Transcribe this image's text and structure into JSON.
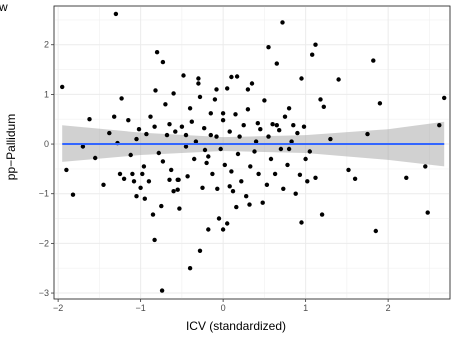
{
  "chart_data": {
    "type": "scatter",
    "corner_label": "w",
    "title": "",
    "xlabel": "ICV (standardized)",
    "ylabel": "pp−Pallidum",
    "xlim": [
      -2.05,
      2.75
    ],
    "ylim": [
      -3.12,
      2.78
    ],
    "x_ticks": [
      -2,
      -1,
      0,
      1,
      2
    ],
    "x_tick_labels": [
      "−2",
      "−1",
      "0",
      "1",
      "2"
    ],
    "y_ticks": [
      -3,
      -2,
      -1,
      0,
      1,
      2
    ],
    "y_tick_labels": [
      "−3",
      "−2",
      "−1",
      "0",
      "1",
      "2"
    ],
    "grid": true,
    "fit_line": {
      "intercept": 0.0,
      "slope": 0.0,
      "color": "#3366ff"
    },
    "confidence_band": {
      "x": [
        -1.95,
        -1.0,
        0.0,
        1.0,
        2.0,
        2.68
      ],
      "lower": [
        -0.36,
        -0.22,
        -0.14,
        -0.18,
        -0.32,
        -0.45
      ],
      "upper": [
        0.38,
        0.23,
        0.14,
        0.18,
        0.3,
        0.45
      ],
      "color": "#999999"
    },
    "point_color": "#000000",
    "points": [
      [
        -1.95,
        1.15
      ],
      [
        -1.9,
        -0.52
      ],
      [
        -1.82,
        -1.02
      ],
      [
        -1.7,
        -0.05
      ],
      [
        -1.62,
        0.5
      ],
      [
        -1.55,
        -0.28
      ],
      [
        -1.45,
        -0.82
      ],
      [
        -1.38,
        0.22
      ],
      [
        -1.32,
        0.55
      ],
      [
        -1.3,
        2.62
      ],
      [
        -1.28,
        0.02
      ],
      [
        -1.25,
        -0.6
      ],
      [
        -1.23,
        0.92
      ],
      [
        -1.2,
        -0.7
      ],
      [
        -1.15,
        0.48
      ],
      [
        -1.12,
        -0.22
      ],
      [
        -1.1,
        -0.6
      ],
      [
        -1.08,
        -0.75
      ],
      [
        -1.05,
        -1.05
      ],
      [
        -1.02,
        0.3
      ],
      [
        -1.0,
        -0.88
      ],
      [
        -0.98,
        -0.6
      ],
      [
        -0.95,
        -1.1
      ],
      [
        -0.93,
        0.2
      ],
      [
        -0.9,
        -0.75
      ],
      [
        -0.88,
        0.55
      ],
      [
        -0.85,
        -1.42
      ],
      [
        -0.83,
        0.35
      ],
      [
        -0.8,
        1.85
      ],
      [
        -0.78,
        -0.18
      ],
      [
        -0.75,
        -1.25
      ],
      [
        -0.73,
        -0.35
      ],
      [
        -0.7,
        0.8
      ],
      [
        -0.68,
        0.18
      ],
      [
        -0.65,
        0.4
      ],
      [
        -0.63,
        -0.52
      ],
      [
        -0.6,
        -0.95
      ],
      [
        -0.58,
        0.25
      ],
      [
        -0.55,
        -0.72
      ],
      [
        -0.53,
        -1.3
      ],
      [
        -0.5,
        0.35
      ],
      [
        -0.48,
        1.38
      ],
      [
        -0.45,
        -0.05
      ],
      [
        -0.43,
        -0.65
      ],
      [
        -0.4,
        0.72
      ],
      [
        -0.38,
        0.45
      ],
      [
        -0.35,
        -0.3
      ],
      [
        -0.33,
        0.05
      ],
      [
        -0.3,
        1.22
      ],
      [
        -0.28,
        0.95
      ],
      [
        -0.25,
        -0.88
      ],
      [
        -0.23,
        0.32
      ],
      [
        -0.2,
        -0.38
      ],
      [
        -0.18,
        -0.25
      ],
      [
        -0.15,
        0.62
      ],
      [
        -0.13,
        -0.6
      ],
      [
        -0.1,
        0.9
      ],
      [
        -0.08,
        0.15
      ],
      [
        -0.05,
        -1.5
      ],
      [
        -0.03,
        -0.1
      ],
      [
        0.0,
        0.48
      ],
      [
        0.02,
        -0.42
      ],
      [
        0.05,
        1.12
      ],
      [
        0.08,
        0.25
      ],
      [
        0.1,
        -0.55
      ],
      [
        0.12,
        -0.95
      ],
      [
        0.15,
        0.6
      ],
      [
        0.18,
        -0.2
      ],
      [
        0.2,
        0.15
      ],
      [
        0.22,
        -0.75
      ],
      [
        0.25,
        0.38
      ],
      [
        0.28,
        -1.05
      ],
      [
        0.3,
        0.7
      ],
      [
        0.33,
        -0.45
      ],
      [
        0.35,
        1.22
      ],
      [
        0.38,
        -0.15
      ],
      [
        0.4,
        0.05
      ],
      [
        0.43,
        -0.6
      ],
      [
        0.45,
        0.3
      ],
      [
        0.48,
        -1.18
      ],
      [
        0.5,
        0.88
      ],
      [
        0.53,
        -0.82
      ],
      [
        0.55,
        0.15
      ],
      [
        0.58,
        -0.3
      ],
      [
        0.6,
        0.4
      ],
      [
        0.63,
        -0.6
      ],
      [
        0.65,
        1.62
      ],
      [
        0.68,
        0.28
      ],
      [
        0.7,
        -0.1
      ],
      [
        0.73,
        -0.9
      ],
      [
        0.75,
        0.55
      ],
      [
        0.78,
        -0.42
      ],
      [
        0.8,
        0.72
      ],
      [
        0.83,
        0.05
      ],
      [
        0.85,
        0.38
      ],
      [
        0.88,
        -1.0
      ],
      [
        0.9,
        0.22
      ],
      [
        0.93,
        -0.62
      ],
      [
        0.95,
        1.32
      ],
      [
        0.98,
        0.35
      ],
      [
        1.0,
        -0.3
      ],
      [
        1.02,
        -0.75
      ],
      [
        -0.73,
        1.65
      ],
      [
        -0.82,
        1.08
      ],
      [
        -0.6,
        1.02
      ],
      [
        -0.3,
        1.32
      ],
      [
        0.17,
        1.36
      ],
      [
        0.55,
        1.95
      ],
      [
        0.1,
        1.35
      ],
      [
        -0.08,
        1.1
      ],
      [
        0.3,
        1.1
      ],
      [
        0.0,
        0.62
      ],
      [
        -0.65,
        -0.72
      ],
      [
        -0.55,
        -0.92
      ],
      [
        0.16,
        -1.27
      ],
      [
        0.08,
        -0.85
      ],
      [
        -0.4,
        -2.5
      ],
      [
        -0.54,
        -0.72
      ],
      [
        -0.74,
        -2.95
      ],
      [
        -0.83,
        -1.93
      ],
      [
        -0.28,
        -2.15
      ],
      [
        0.05,
        -1.6
      ],
      [
        0.0,
        -1.72
      ],
      [
        0.32,
        -1.22
      ],
      [
        -0.07,
        -0.9
      ],
      [
        -0.22,
        -0.12
      ],
      [
        0.72,
        2.45
      ],
      [
        0.65,
        0.38
      ],
      [
        1.05,
        -0.15
      ],
      [
        1.08,
        1.8
      ],
      [
        1.12,
        2.0
      ],
      [
        1.18,
        0.9
      ],
      [
        1.22,
        0.75
      ],
      [
        1.3,
        0.1
      ],
      [
        1.4,
        1.3
      ],
      [
        1.52,
        -0.52
      ],
      [
        1.6,
        -0.7
      ],
      [
        1.75,
        0.2
      ],
      [
        1.82,
        1.68
      ],
      [
        1.85,
        -1.75
      ],
      [
        1.9,
        0.82
      ],
      [
        2.22,
        -0.68
      ],
      [
        2.45,
        -0.45
      ],
      [
        2.48,
        -1.38
      ],
      [
        2.62,
        0.38
      ],
      [
        2.68,
        0.93
      ],
      [
        1.2,
        -1.42
      ],
      [
        1.12,
        -0.68
      ],
      [
        0.95,
        -1.58
      ],
      [
        -0.18,
        -1.72
      ],
      [
        -0.96,
        -0.45
      ],
      [
        -1.05,
        0.1
      ],
      [
        -0.45,
        0.18
      ],
      [
        -0.15,
        0.18
      ],
      [
        0.42,
        0.42
      ],
      [
        0.8,
        -0.1
      ]
    ]
  }
}
